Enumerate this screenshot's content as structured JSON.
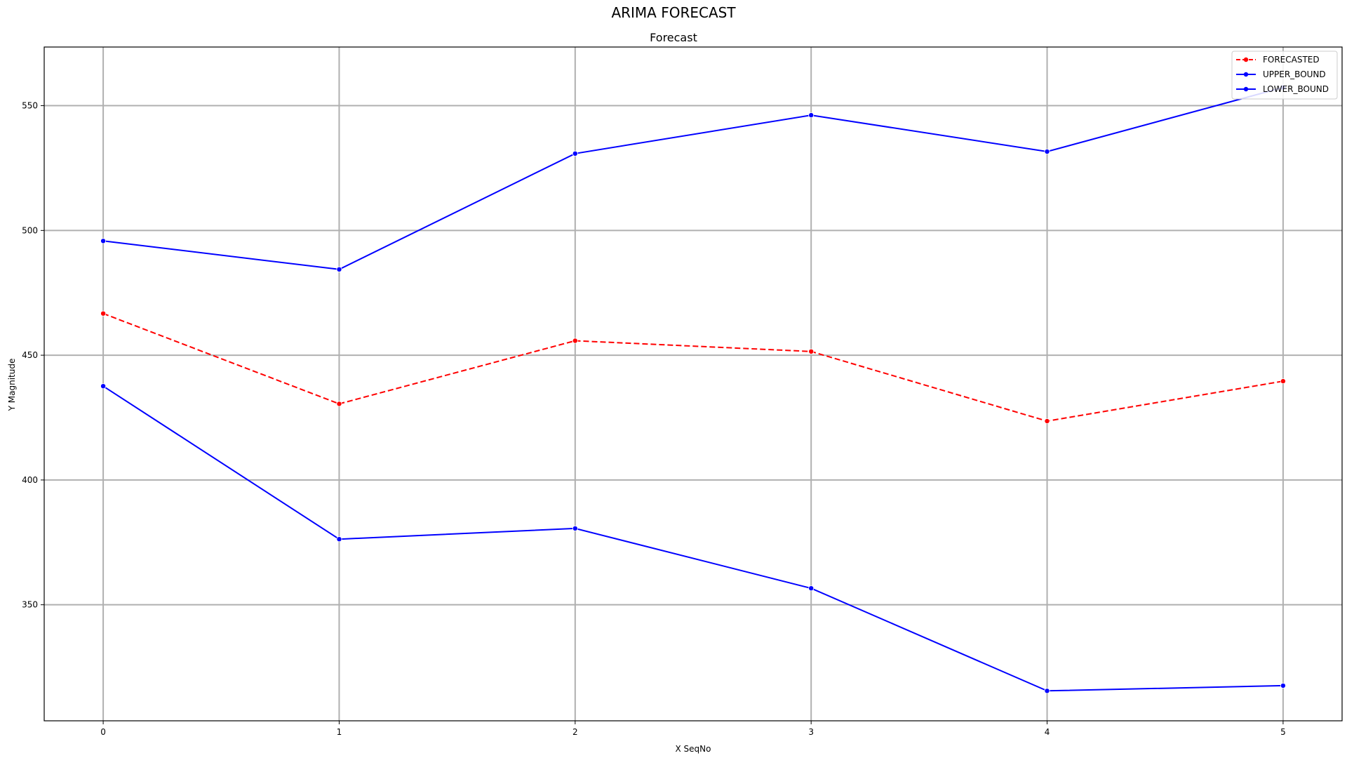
{
  "chart_data": {
    "type": "line",
    "title": "ARIMA FORECAST",
    "subtitle": "Forecast",
    "xlabel": "X SeqNo",
    "ylabel": "Y Magnitude",
    "x": [
      0,
      1,
      2,
      3,
      4,
      5
    ],
    "xlim": [
      -0.25,
      5.25
    ],
    "ylim": [
      303.5,
      573.5
    ],
    "xticks": [
      0,
      1,
      2,
      3,
      4,
      5
    ],
    "yticks": [
      350,
      400,
      450,
      500,
      550
    ],
    "grid": true,
    "legend_position": "top-right",
    "series": [
      {
        "name": "FORECASTED",
        "color": "#ff0000",
        "line_style": "dashed",
        "marker": "circle",
        "values": [
          466.7,
          430.5,
          455.8,
          451.5,
          423.6,
          439.6
        ]
      },
      {
        "name": "UPPER_BOUND",
        "color": "#0000ff",
        "line_style": "solid",
        "marker": "circle",
        "values": [
          495.8,
          484.4,
          530.8,
          546.2,
          531.6,
          557.3
        ]
      },
      {
        "name": "LOWER_BOUND",
        "color": "#0000ff",
        "line_style": "solid",
        "marker": "circle",
        "values": [
          437.6,
          376.3,
          380.6,
          356.6,
          315.5,
          317.6
        ]
      }
    ]
  }
}
